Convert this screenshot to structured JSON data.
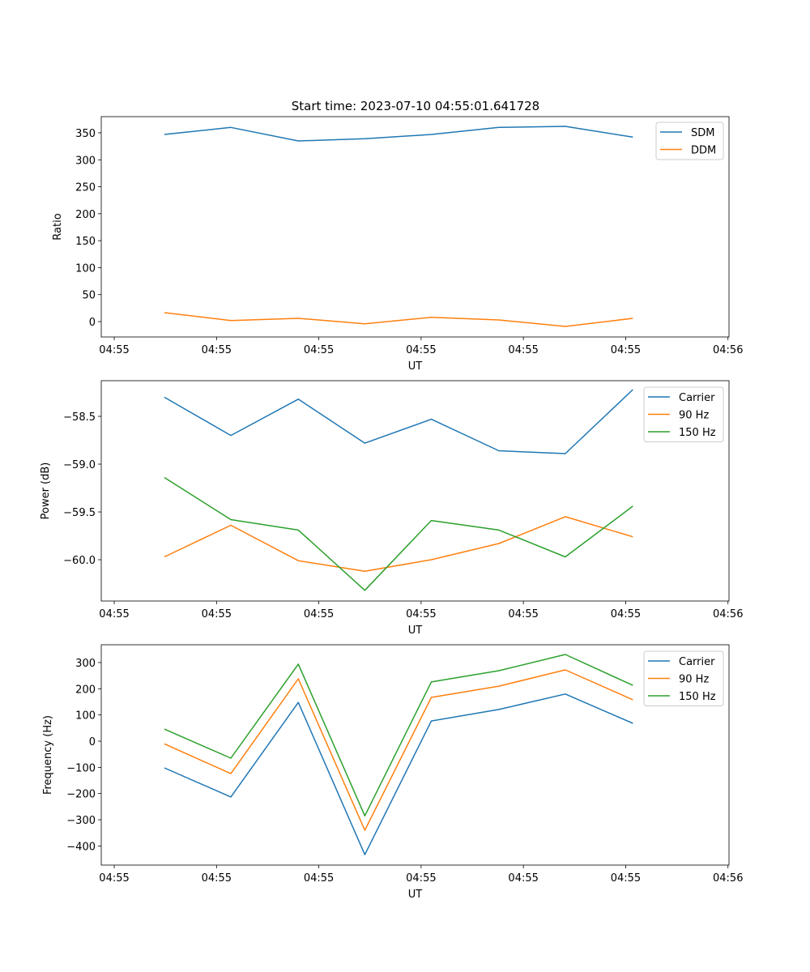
{
  "chart_data": {
    "type": "line",
    "title": "Start time: 2023-07-10 04:55:01.641728",
    "colors": {
      "blue": "#1f77b4",
      "orange": "#ff7f0e",
      "green": "#2ca02c"
    },
    "x_units": "seconds after 04:55:00",
    "x": [
      4.9,
      11.4,
      18.0,
      24.5,
      31.0,
      37.6,
      44.1,
      50.7
    ],
    "xlim": [
      -1.27,
      60.1
    ],
    "xticks": [
      0,
      10,
      20,
      30,
      40,
      50,
      60
    ],
    "xticklabels": [
      "04:55",
      "04:55",
      "04:55",
      "04:55",
      "04:55",
      "04:55",
      "04:56"
    ],
    "panels": [
      {
        "xlabel": "UT",
        "ylabel": "Ratio",
        "ylim": [
          -28.5,
          380
        ],
        "yticks": [
          0,
          50,
          100,
          150,
          200,
          250,
          300,
          350
        ],
        "yticklabels": [
          "0",
          "50",
          "100",
          "150",
          "200",
          "250",
          "300",
          "350"
        ],
        "legend_placement": "upper-right",
        "series": [
          {
            "name": "SDM",
            "color": "#1f77b4",
            "values": [
              347,
              360,
              335,
              339,
              347,
              360,
              362,
              342
            ]
          },
          {
            "name": "DDM",
            "color": "#ff7f0e",
            "values": [
              16.5,
              2,
              6,
              -4,
              8,
              3,
              -9,
              6
            ]
          }
        ]
      },
      {
        "xlabel": "UT",
        "ylabel": "Power (dB)",
        "ylim": [
          -60.432,
          -58.127
        ],
        "yticks": [
          -60.0,
          -59.5,
          -59.0,
          -58.5
        ],
        "yticklabels": [
          "−60.0",
          "−59.5",
          "−59.0",
          "−58.5"
        ],
        "legend_placement": "upper-right",
        "series": [
          {
            "name": "Carrier",
            "color": "#1f77b4",
            "values": [
              -58.3,
              -58.7,
              -58.32,
              -58.78,
              -58.53,
              -58.86,
              -58.89,
              -58.22
            ]
          },
          {
            "name": "90 Hz",
            "color": "#ff7f0e",
            "values": [
              -59.97,
              -59.64,
              -60.01,
              -60.12,
              -60.0,
              -59.83,
              -59.55,
              -59.76
            ]
          },
          {
            "name": "150 Hz",
            "color": "#2ca02c",
            "values": [
              -59.14,
              -59.58,
              -59.69,
              -60.32,
              -59.59,
              -59.69,
              -59.97,
              -59.44
            ]
          }
        ]
      },
      {
        "xlabel": "UT",
        "ylabel": "Frequency (Hz)",
        "ylim": [
          -473,
          368
        ],
        "yticks": [
          -400,
          -300,
          -200,
          -100,
          0,
          100,
          200,
          300
        ],
        "yticklabels": [
          "−400",
          "−300",
          "−200",
          "−100",
          "0",
          "100",
          "200",
          "300"
        ],
        "legend_placement": "upper-right",
        "series": [
          {
            "name": "Carrier",
            "color": "#1f77b4",
            "values": [
              -102,
              -213,
              148,
              -433,
              77,
              121,
              180,
              68
            ]
          },
          {
            "name": "90 Hz",
            "color": "#ff7f0e",
            "values": [
              -10,
              -124,
              238,
              -340,
              167,
              210,
              272,
              158
            ]
          },
          {
            "name": "150 Hz",
            "color": "#2ca02c",
            "values": [
              46,
              -65,
              294,
              -285,
              226,
              269,
              331,
              213
            ]
          }
        ]
      }
    ]
  }
}
